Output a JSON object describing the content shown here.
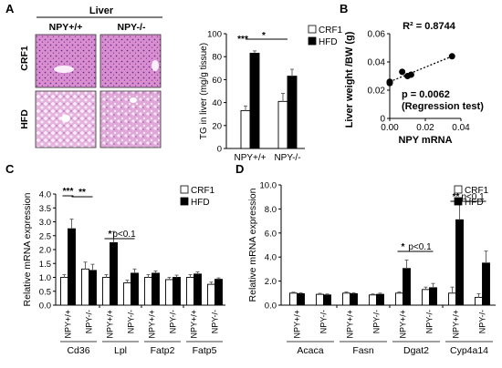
{
  "panels": {
    "a": "A",
    "b": "B",
    "c": "C",
    "d": "D"
  },
  "histology": {
    "title": "Liver",
    "columns": [
      "NPY+/+",
      "NPY-/-"
    ],
    "rows": [
      "CRF1",
      "HFD"
    ]
  },
  "chart_data": [
    {
      "id": "A-bar",
      "type": "bar",
      "ylabel": "TG in liver (mg/g tissue)",
      "ylim": [
        0,
        100
      ],
      "ticks": [
        0,
        20,
        40,
        60,
        80,
        100
      ],
      "categories": [
        "NPY+/+",
        "NPY-/-"
      ],
      "series": [
        {
          "name": "CRF1",
          "values": [
            33,
            41
          ],
          "errors": [
            4,
            7
          ],
          "color": "#ffffff"
        },
        {
          "name": "HFD",
          "values": [
            83,
            63
          ],
          "errors": [
            2,
            6
          ],
          "color": "#000000"
        }
      ],
      "annotations": [
        "***",
        "*"
      ],
      "legend": "top-right"
    },
    {
      "id": "B-scatter",
      "type": "scatter",
      "xlabel": "NPY mRNA",
      "ylabel": "Liver weight /BW (g)",
      "xlim": [
        0,
        0.04
      ],
      "ylim": [
        0,
        0.06
      ],
      "xticks": [
        "0.00",
        "0.02",
        "0.04"
      ],
      "yticks": [
        "0",
        "0.02",
        "0.04",
        "0.06"
      ],
      "points": [
        {
          "x": 0.0,
          "y": 0.025
        },
        {
          "x": 0.0,
          "y": 0.026
        },
        {
          "x": 0.007,
          "y": 0.033
        },
        {
          "x": 0.01,
          "y": 0.03
        },
        {
          "x": 0.012,
          "y": 0.031
        },
        {
          "x": 0.035,
          "y": 0.044
        }
      ],
      "trend": [
        {
          "x": 0.0,
          "y": 0.026
        },
        {
          "x": 0.035,
          "y": 0.044
        }
      ],
      "r2_text": "R² = 0.8744",
      "p_text": "p = 0.0062",
      "test_text": "(Regression test)"
    },
    {
      "id": "C-bar",
      "type": "bar",
      "ylabel": "Relative mRNA expression",
      "ylim": [
        0,
        4.0
      ],
      "ticks": [
        "0.0",
        "0.5",
        "1.0",
        "1.5",
        "2.0",
        "2.5",
        "3.0",
        "3.5",
        "4.0"
      ],
      "genes": [
        "Cd36",
        "Lpl",
        "Fatp2",
        "Fatp5"
      ],
      "genotypes": [
        "NPY+/+",
        "NPY-/-"
      ],
      "series": [
        {
          "name": "CRF1",
          "values": [
            1.0,
            1.3,
            1.0,
            0.8,
            1.0,
            0.92,
            1.0,
            0.75
          ],
          "errors": [
            0.1,
            0.25,
            0.1,
            0.1,
            0.1,
            0.08,
            0.1,
            0.08
          ],
          "color": "#ffffff"
        },
        {
          "name": "HFD",
          "values": [
            2.75,
            1.25,
            2.25,
            1.15,
            1.15,
            1.0,
            1.12,
            0.93
          ],
          "errors": [
            0.35,
            0.22,
            0.4,
            0.15,
            0.08,
            0.08,
            0.08,
            0.05
          ],
          "color": "#000000"
        }
      ],
      "annotations": [
        {
          "text": "***",
          "from": 0,
          "to": 0
        },
        {
          "text": "**",
          "from": 0,
          "to": 1
        },
        {
          "text": "*",
          "from": 2,
          "to": 2
        },
        {
          "text": "p<0.1",
          "from": 2,
          "to": 3
        }
      ],
      "legend": "top-right"
    },
    {
      "id": "D-bar",
      "type": "bar",
      "ylabel": "Relative mRNA expression",
      "ylim": [
        0,
        10
      ],
      "ticks": [
        "0.0",
        "2.0",
        "4.0",
        "6.0",
        "8.0",
        "10.0"
      ],
      "genes": [
        "Acaca",
        "Fasn",
        "Dgat2",
        "Cyp4a14"
      ],
      "genotypes": [
        "NPY+/+",
        "NPY-/-"
      ],
      "series": [
        {
          "name": "CRF1",
          "values": [
            1.0,
            0.9,
            1.0,
            0.85,
            1.0,
            1.3,
            1.0,
            0.65
          ],
          "errors": [
            0.08,
            0.08,
            0.1,
            0.08,
            0.1,
            0.2,
            0.5,
            0.3
          ],
          "color": "#ffffff"
        },
        {
          "name": "HFD",
          "values": [
            0.95,
            0.85,
            0.95,
            0.9,
            3.05,
            1.45,
            7.1,
            3.5
          ],
          "errors": [
            0.08,
            0.08,
            0.08,
            0.1,
            0.7,
            0.35,
            1.4,
            1.0
          ],
          "color": "#000000"
        }
      ],
      "annotations": [
        {
          "text": "*",
          "from": 4,
          "to": 4
        },
        {
          "text": "p<0.1",
          "from": 4,
          "to": 5
        },
        {
          "text": "**",
          "from": 6,
          "to": 6
        },
        {
          "text": "p<0.1",
          "from": 6,
          "to": 7
        }
      ],
      "legend": "top-right"
    }
  ]
}
